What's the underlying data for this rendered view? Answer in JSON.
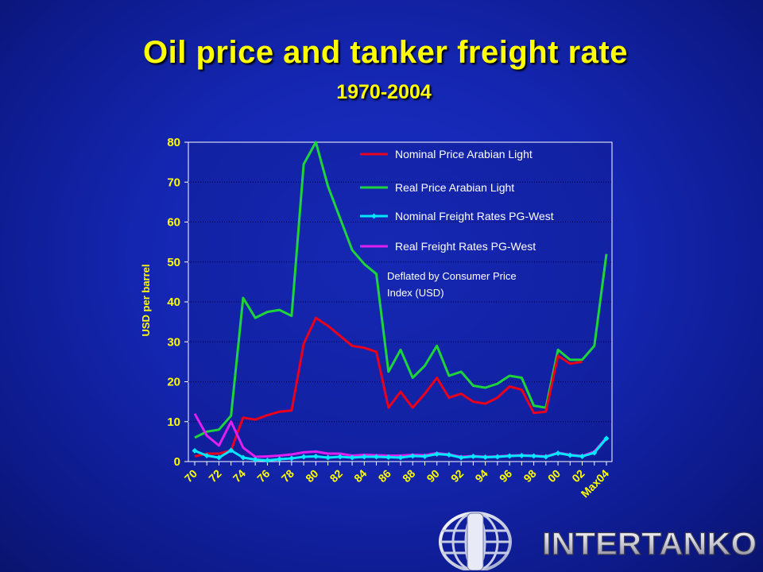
{
  "title": "Oil price and tanker freight rate",
  "subtitle": "1970-2004",
  "chart_data": {
    "type": "line",
    "ylabel": "USD per barrel",
    "ylim": [
      0,
      80
    ],
    "yticks": [
      0,
      10,
      20,
      30,
      40,
      50,
      60,
      70,
      80
    ],
    "x": [
      "70",
      "71",
      "72",
      "73",
      "74",
      "75",
      "76",
      "77",
      "78",
      "79",
      "80",
      "81",
      "82",
      "83",
      "84",
      "85",
      "86",
      "87",
      "88",
      "89",
      "90",
      "91",
      "92",
      "93",
      "94",
      "95",
      "96",
      "97",
      "98",
      "99",
      "00",
      "01",
      "02",
      "03",
      "Max04"
    ],
    "xticks": [
      "70",
      "72",
      "74",
      "76",
      "78",
      "80",
      "82",
      "84",
      "86",
      "88",
      "90",
      "92",
      "94",
      "96",
      "98",
      "00",
      "02",
      "Max04"
    ],
    "legend_position": "top-right",
    "annotation": "Deflated by Consumer Price Index (USD)",
    "series": [
      {
        "name": "Nominal Price Arabian Light",
        "color": "#e8001c",
        "marker": "none",
        "values": [
          1.3,
          2,
          2,
          2.8,
          11,
          10.5,
          11.6,
          12.5,
          12.8,
          29.5,
          36,
          34,
          31.5,
          29,
          28.5,
          27.5,
          13.5,
          17.5,
          13.5,
          17,
          21,
          16,
          17,
          15,
          14.5,
          16,
          18.8,
          18,
          12.2,
          12.5,
          26.5,
          24.5,
          25,
          null,
          null
        ]
      },
      {
        "name": "Real Price Arabian Light",
        "color": "#1ed43a",
        "marker": "none",
        "values": [
          6,
          7.5,
          8,
          11.5,
          41,
          36,
          37.5,
          38,
          36.5,
          74.5,
          80,
          69,
          61,
          53,
          49.5,
          47,
          22.5,
          28,
          21,
          24,
          29,
          21.5,
          22.5,
          19,
          18.5,
          19.5,
          21.5,
          21,
          14,
          13.5,
          28,
          25.5,
          25.5,
          29,
          52
        ]
      },
      {
        "name": "Nominal Freight Rates PG-West",
        "color": "#00e8ff",
        "marker": "diamond",
        "values": [
          2.7,
          1.5,
          1,
          2.8,
          1,
          0.5,
          0.3,
          0.6,
          0.8,
          1.2,
          1.3,
          1,
          1.2,
          1,
          1.2,
          1.2,
          1.1,
          1,
          1.4,
          1.3,
          1.9,
          1.7,
          1,
          1.3,
          1.1,
          1.2,
          1.4,
          1.5,
          1.4,
          1.2,
          2.1,
          1.6,
          1.3,
          2.2,
          5.8
        ]
      },
      {
        "name": "Real Freight Rates PG-West",
        "color": "#e020f0",
        "marker": "none",
        "values": [
          12,
          6.5,
          4,
          10,
          3.5,
          1.2,
          1.3,
          1.5,
          1.8,
          2.3,
          2.5,
          2,
          2,
          1.5,
          1.7,
          1.6,
          1.5,
          1.5,
          1.7,
          1.6,
          2.1,
          1.8,
          1.2,
          1.4,
          1.2,
          1.3,
          1.5,
          1.6,
          1.5,
          1.3,
          2.2,
          1.7,
          1.4,
          2.5,
          6
        ]
      }
    ]
  },
  "logo": {
    "text": "INTERTANKO"
  }
}
